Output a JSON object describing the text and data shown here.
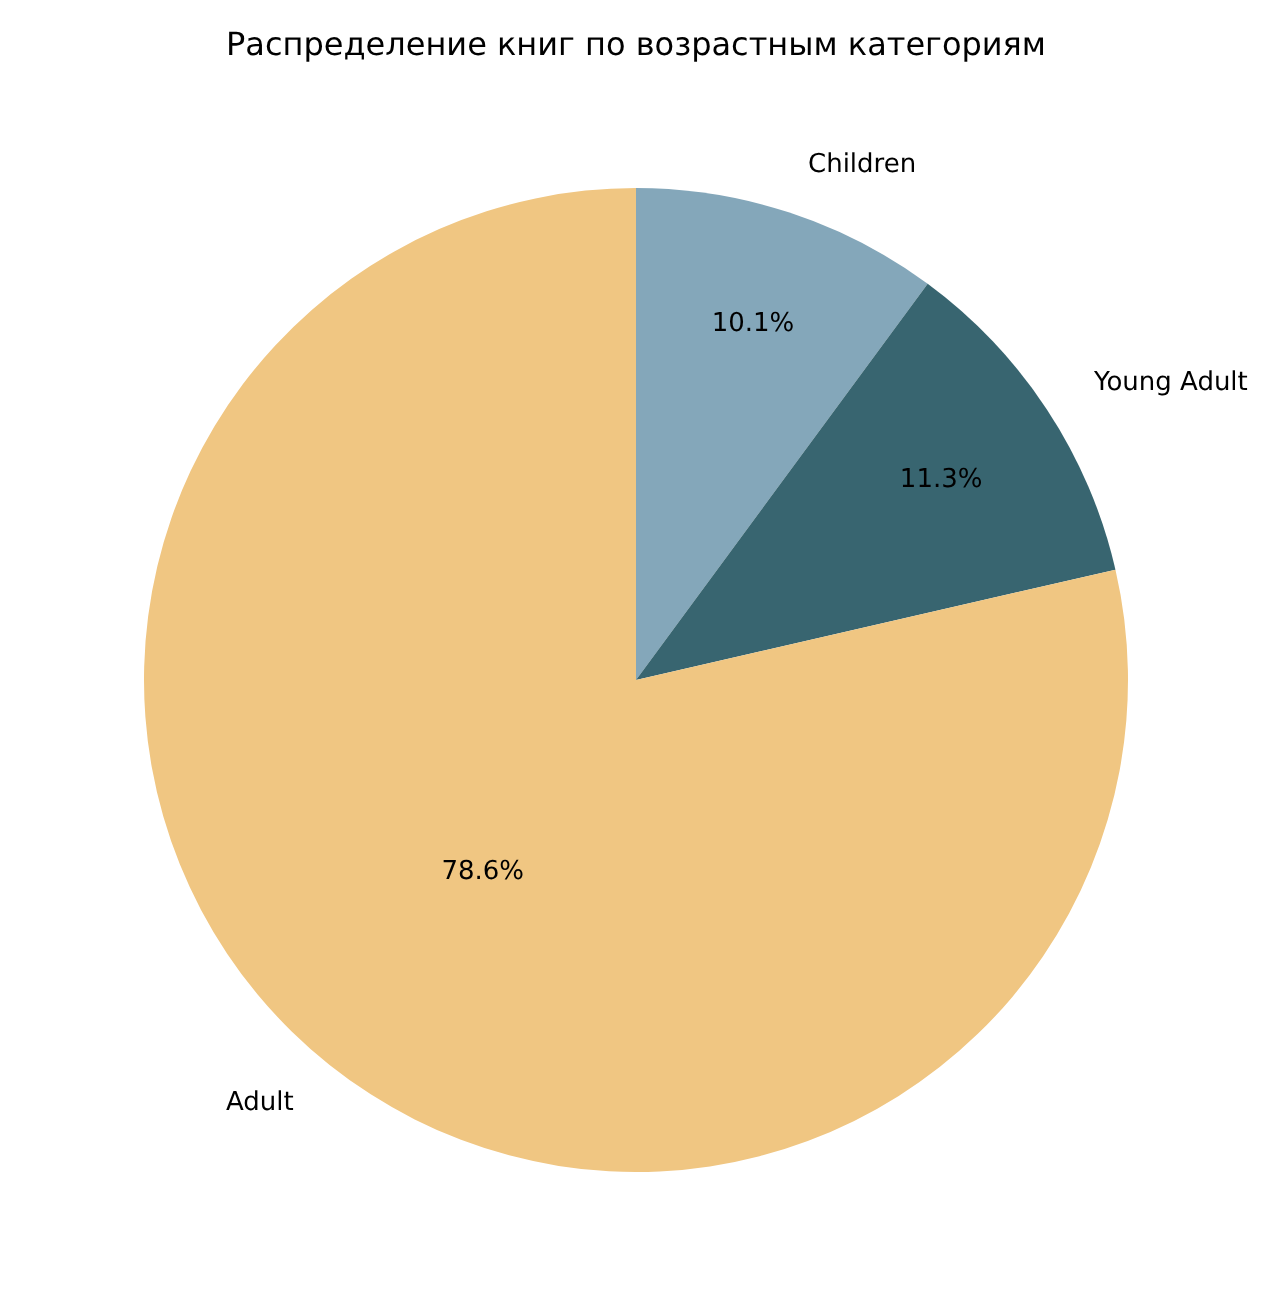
{
  "chart_data": {
    "type": "pie",
    "title": "Распределение книг по возрастным категориям",
    "categories": [
      "Adult",
      "Young Adult",
      "Children"
    ],
    "values": [
      78.6,
      11.3,
      10.1
    ],
    "value_labels": [
      "78.6%",
      "11.3%",
      "10.1%"
    ],
    "colors": [
      "#f0c682",
      "#386570",
      "#84a7ba"
    ],
    "legend": false
  }
}
